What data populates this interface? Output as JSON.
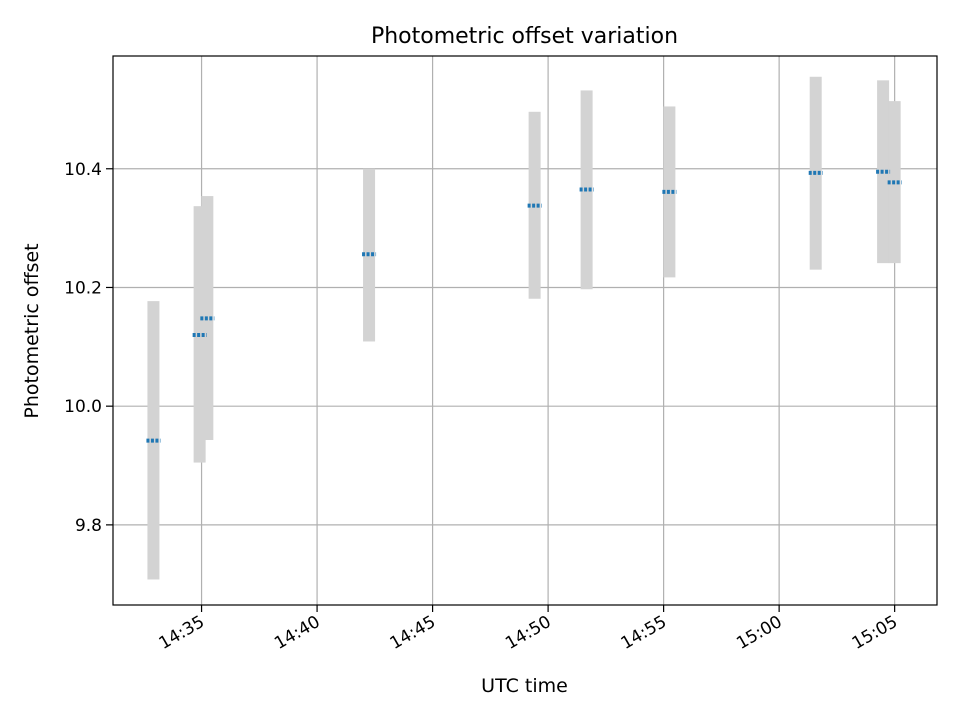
{
  "chart_data": {
    "type": "scatter",
    "title": "Photometric offset variation",
    "xlabel": "UTC time",
    "ylabel": "Photometric offset",
    "xlim": [
      "14:31:10",
      "15:06:50"
    ],
    "ylim": [
      9.665,
      10.59
    ],
    "grid": true,
    "x_ticks": [
      "14:35",
      "14:40",
      "14:45",
      "14:50",
      "14:55",
      "15:00",
      "15:05"
    ],
    "y_ticks": [
      9.8,
      10.0,
      10.2,
      10.4
    ],
    "points": [
      {
        "x": "14:32:55",
        "y": 9.942,
        "y_low": 9.708,
        "y_high": 10.177
      },
      {
        "x": "14:34:55",
        "y": 10.12,
        "y_low": 9.905,
        "y_high": 10.337
      },
      {
        "x": "14:35:15",
        "y": 10.148,
        "y_low": 9.943,
        "y_high": 10.354
      },
      {
        "x": "14:42:15",
        "y": 10.256,
        "y_low": 10.109,
        "y_high": 10.4
      },
      {
        "x": "14:49:25",
        "y": 10.338,
        "y_low": 10.181,
        "y_high": 10.496
      },
      {
        "x": "14:51:40",
        "y": 10.365,
        "y_low": 10.197,
        "y_high": 10.532
      },
      {
        "x": "14:55:15",
        "y": 10.361,
        "y_low": 10.217,
        "y_high": 10.505
      },
      {
        "x": "15:01:35",
        "y": 10.393,
        "y_low": 10.23,
        "y_high": 10.555
      },
      {
        "x": "15:04:30",
        "y": 10.395,
        "y_low": 10.241,
        "y_high": 10.549
      },
      {
        "x": "15:05:00",
        "y": 10.377,
        "y_low": 10.241,
        "y_high": 10.514
      }
    ],
    "colors": {
      "marker": "#1f77b4",
      "errorbar": "#d3d3d3",
      "grid": "#b0b0b0",
      "axes": "#000000"
    }
  }
}
